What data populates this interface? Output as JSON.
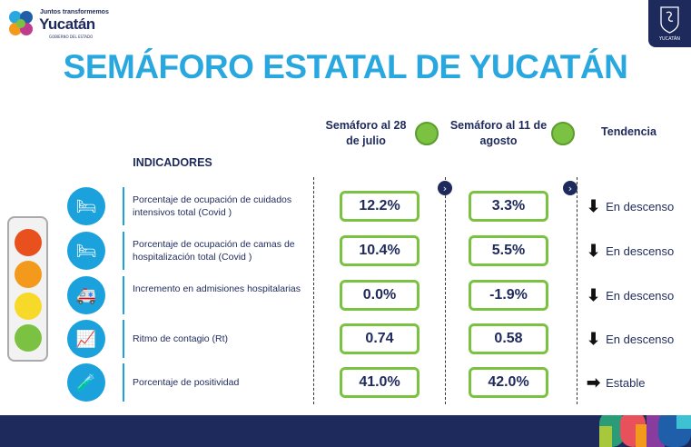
{
  "logo": {
    "tagline": "Juntos transformemos",
    "name": "Yucatán",
    "sub": "GOBIERNO DEL ESTADO"
  },
  "badge": {
    "text": "YUCATÁN"
  },
  "title": "SEMÁFORO ESTATAL DE YUCATÁN",
  "headers": {
    "col1": "Semáforo al 28 de julio",
    "col2": "Semáforo al 11 de agosto",
    "col3": "Tendencia",
    "indicators": "INDICADORES"
  },
  "semaforo_colors": {
    "col1": "#7cc242",
    "col2": "#7cc242"
  },
  "rows": [
    {
      "icon": "icu-bed-icon",
      "label": "Porcentaje de ocupación de cuidados intensivos total (Covid )",
      "v1": "12.2%",
      "v2": "3.3%",
      "trend_icon": "arrow-down-icon",
      "trend": "En descenso"
    },
    {
      "icon": "hospital-bed-icon",
      "label": "Porcentaje de ocupación de camas de hospitalización total (Covid )",
      "v1": "10.4%",
      "v2": "5.5%",
      "trend_icon": "arrow-down-icon",
      "trend": "En descenso"
    },
    {
      "icon": "ambulance-icon",
      "label": "Incremento en admisiones hospitalarias",
      "v1": "0.0%",
      "v2": "-1.9%",
      "trend_icon": "arrow-down-icon",
      "trend": "En descenso"
    },
    {
      "icon": "virus-chart-icon",
      "label": "Ritmo de contagio (Rt)",
      "v1": "0.74",
      "v2": "0.58",
      "trend_icon": "arrow-down-icon",
      "trend": "En descenso"
    },
    {
      "icon": "test-swab-icon",
      "label": "Porcentaje de positividad",
      "v1": "41.0%",
      "v2": "42.0%",
      "trend_icon": "arrow-right-icon",
      "trend": "Estable"
    }
  ],
  "traffic_light": {
    "colors": [
      "#e8501e",
      "#f39a1c",
      "#f7d92a",
      "#7cc242"
    ]
  }
}
